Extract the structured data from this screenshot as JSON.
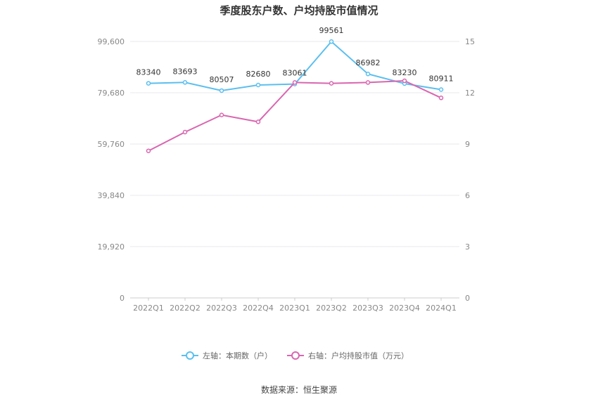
{
  "chart_data": {
    "type": "line",
    "title": "季度股东户数、户均持股市值情况",
    "categories": [
      "2022Q1",
      "2022Q2",
      "2022Q3",
      "2022Q4",
      "2023Q1",
      "2023Q2",
      "2023Q3",
      "2023Q4",
      "2024Q1"
    ],
    "series": [
      {
        "name": "左轴：本期数（户）",
        "axis": "left",
        "color": "#5bbfef",
        "values": [
          83340,
          83693,
          80507,
          82680,
          83061,
          99561,
          86982,
          83230,
          80911
        ],
        "data_labels": [
          "83340",
          "83693",
          "80507",
          "82680",
          "83061",
          "99561",
          "86982",
          "83230",
          "80911"
        ]
      },
      {
        "name": "右轴：户均持股市值（万元）",
        "axis": "right",
        "color": "#d966b0",
        "values": [
          8.6,
          9.7,
          10.7,
          10.3,
          12.6,
          12.55,
          12.6,
          12.7,
          11.7
        ]
      }
    ],
    "y_left": {
      "ylim": [
        0,
        99600
      ],
      "tick_values": [
        0,
        19920,
        39840,
        59760,
        79680,
        99600
      ],
      "tick_labels": [
        "0",
        "19,920",
        "39,840",
        "59,760",
        "79,680",
        "99,600"
      ]
    },
    "y_right": {
      "ylim": [
        0,
        15
      ],
      "tick_values": [
        0,
        3,
        6,
        9,
        12,
        15
      ],
      "tick_labels": [
        "0",
        "3",
        "6",
        "9",
        "12",
        "15"
      ]
    },
    "grid": true,
    "legend_position": "bottom",
    "source": "数据来源：恒生聚源"
  }
}
